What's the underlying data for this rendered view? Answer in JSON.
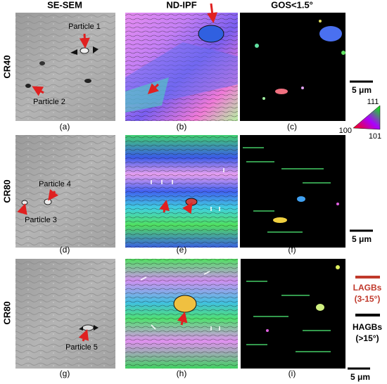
{
  "columns": [
    "SE-SEM",
    "ND-IPF",
    "GOS<1.5°"
  ],
  "rows": [
    {
      "label": "CR40",
      "panels": [
        "(a)",
        "(b)",
        "(c)"
      ]
    },
    {
      "label": "CR80",
      "panels": [
        "(d)",
        "(e)",
        "(f)"
      ]
    },
    {
      "label": "CR80",
      "panels": [
        "(g)",
        "(h)",
        "(i)"
      ]
    }
  ],
  "particles": [
    "Particle 1",
    "Particle 2",
    "Particle 3",
    "Particle 4",
    "Particle 5"
  ],
  "scale_bars": [
    "5 μm",
    "5 μm",
    "5 μm"
  ],
  "ipf_legend": {
    "top": "111",
    "left": "100",
    "right": "101"
  },
  "boundary_legend": [
    {
      "name": "LAGBs",
      "range": "(3-15°)"
    },
    {
      "name": "HAGBs",
      "range": "(>15°)"
    }
  ]
}
